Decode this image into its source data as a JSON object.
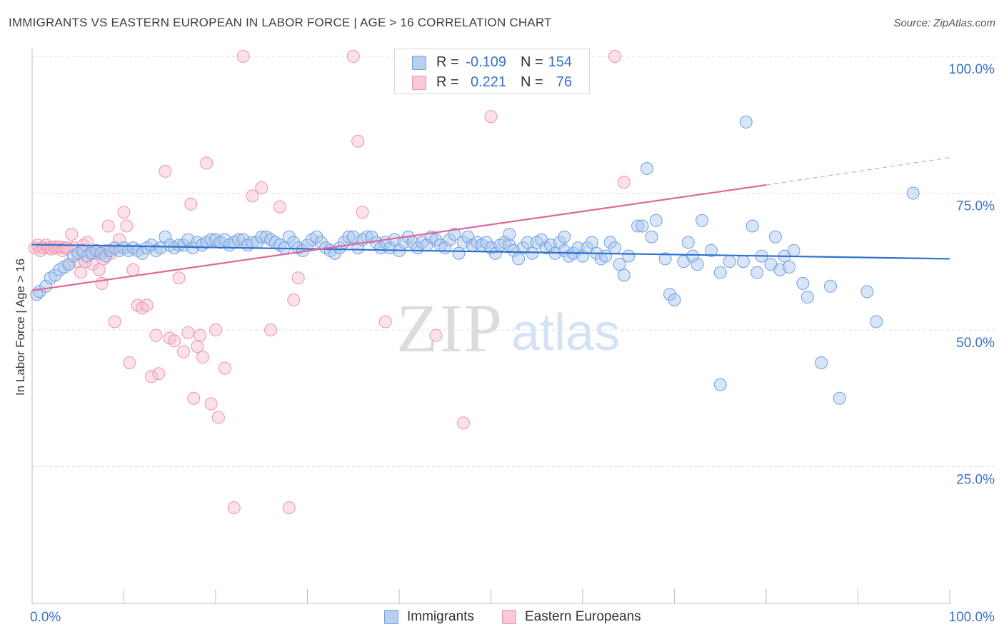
{
  "header": {
    "title": "IMMIGRANTS VS EASTERN EUROPEAN IN LABOR FORCE | AGE > 16 CORRELATION CHART",
    "source": "Source: ZipAtlas.com"
  },
  "watermark": {
    "zip": "ZIP",
    "atlas": "atlas"
  },
  "legend_top": {
    "rows": [
      {
        "r_label": "R =",
        "r_value": "-0.109",
        "n_label": "N =",
        "n_value": "154"
      },
      {
        "r_label": "R =",
        "r_value": "0.221",
        "n_label": "N =",
        "n_value": "76"
      }
    ]
  },
  "legend_bottom": {
    "items": [
      "Immigrants",
      "Eastern Europeans"
    ]
  },
  "colors": {
    "blue_fill": "#a9c6ee",
    "blue_stroke": "#6f9fdf",
    "blue_line": "#2f6fcf",
    "pink_fill": "#f6bccd",
    "pink_stroke": "#ee93ad",
    "pink_line": "#e0679a",
    "tick_label": "#3a72c8",
    "grid": "#d9d9d9"
  },
  "chart_data": {
    "type": "scatter",
    "xlabel": "",
    "ylabel": "In Labor Force | Age > 16",
    "xlim": [
      0,
      100
    ],
    "ylim": [
      0,
      100
    ],
    "x_tick_labels": [
      "0.0%",
      "100.0%"
    ],
    "y_ticks": [
      25,
      50,
      75,
      100
    ],
    "y_tick_labels": [
      "25.0%",
      "50.0%",
      "75.0%",
      "100.0%"
    ],
    "grid": "horizontal dashed",
    "series": [
      {
        "name": "Immigrants",
        "trend": {
          "x0": 0,
          "y0": 65.6,
          "x1": 100,
          "y1": 63.0
        },
        "points": [
          [
            0.5,
            56.5
          ],
          [
            0.8,
            57.0
          ],
          [
            1.5,
            58.0
          ],
          [
            2.0,
            59.5
          ],
          [
            2.5,
            60.0
          ],
          [
            3.0,
            61.0
          ],
          [
            3.5,
            61.5
          ],
          [
            4.0,
            62.0
          ],
          [
            4.5,
            63.5
          ],
          [
            5.0,
            64.0
          ],
          [
            5.5,
            64.5
          ],
          [
            6.0,
            63.5
          ],
          [
            6.5,
            64.0
          ],
          [
            7.0,
            64.5
          ],
          [
            7.5,
            64.0
          ],
          [
            8.0,
            63.5
          ],
          [
            8.5,
            64.5
          ],
          [
            9.0,
            65.0
          ],
          [
            9.5,
            64.5
          ],
          [
            10.0,
            65.0
          ],
          [
            10.5,
            64.5
          ],
          [
            11.0,
            65.0
          ],
          [
            11.5,
            64.5
          ],
          [
            12.0,
            64.0
          ],
          [
            12.5,
            65.0
          ],
          [
            13.0,
            65.5
          ],
          [
            13.5,
            64.5
          ],
          [
            14.0,
            65.0
          ],
          [
            14.5,
            67.0
          ],
          [
            15.0,
            65.5
          ],
          [
            15.5,
            65.0
          ],
          [
            16.0,
            65.5
          ],
          [
            16.5,
            65.5
          ],
          [
            17.0,
            66.5
          ],
          [
            17.5,
            65.0
          ],
          [
            18.0,
            66.0
          ],
          [
            18.5,
            65.5
          ],
          [
            19.0,
            66.0
          ],
          [
            19.5,
            66.5
          ],
          [
            20.0,
            66.5
          ],
          [
            20.5,
            66.0
          ],
          [
            21.0,
            66.5
          ],
          [
            21.5,
            65.5
          ],
          [
            22.0,
            66.0
          ],
          [
            22.5,
            66.5
          ],
          [
            23.0,
            66.5
          ],
          [
            23.5,
            65.5
          ],
          [
            24.0,
            66.0
          ],
          [
            24.5,
            66.0
          ],
          [
            25.0,
            67.0
          ],
          [
            25.5,
            67.0
          ],
          [
            26.0,
            66.5
          ],
          [
            26.5,
            66.0
          ],
          [
            27.0,
            65.5
          ],
          [
            27.5,
            65.0
          ],
          [
            28.0,
            67.0
          ],
          [
            28.5,
            66.0
          ],
          [
            29.0,
            65.0
          ],
          [
            29.5,
            64.5
          ],
          [
            30.0,
            65.5
          ],
          [
            30.5,
            66.5
          ],
          [
            31.0,
            67.0
          ],
          [
            31.5,
            66.0
          ],
          [
            32.0,
            65.0
          ],
          [
            32.5,
            64.5
          ],
          [
            33.0,
            64.0
          ],
          [
            33.5,
            65.0
          ],
          [
            34.0,
            66.0
          ],
          [
            34.5,
            67.0
          ],
          [
            35.0,
            67.0
          ],
          [
            35.5,
            65.0
          ],
          [
            36.0,
            66.5
          ],
          [
            36.5,
            67.0
          ],
          [
            37.0,
            67.0
          ],
          [
            37.5,
            66.0
          ],
          [
            38.0,
            65.0
          ],
          [
            38.5,
            66.0
          ],
          [
            39.0,
            65.0
          ],
          [
            39.5,
            66.5
          ],
          [
            40.0,
            64.5
          ],
          [
            40.5,
            66.0
          ],
          [
            41.0,
            67.0
          ],
          [
            41.5,
            66.0
          ],
          [
            42.0,
            65.0
          ],
          [
            42.5,
            66.0
          ],
          [
            43.0,
            65.5
          ],
          [
            43.5,
            67.0
          ],
          [
            44.0,
            66.5
          ],
          [
            44.5,
            65.5
          ],
          [
            45.0,
            65.0
          ],
          [
            45.5,
            66.5
          ],
          [
            46.0,
            67.5
          ],
          [
            46.5,
            64.0
          ],
          [
            47.0,
            66.0
          ],
          [
            47.5,
            67.0
          ],
          [
            48.0,
            65.5
          ],
          [
            48.5,
            66.0
          ],
          [
            49.0,
            65.5
          ],
          [
            49.5,
            66.0
          ],
          [
            50.0,
            65.0
          ],
          [
            50.5,
            64.0
          ],
          [
            51.0,
            65.5
          ],
          [
            51.5,
            66.0
          ],
          [
            52.0,
            65.5
          ],
          [
            52.5,
            64.5
          ],
          [
            53.0,
            63.0
          ],
          [
            53.5,
            65.0
          ],
          [
            54.0,
            66.0
          ],
          [
            54.5,
            64.0
          ],
          [
            55.0,
            66.0
          ],
          [
            55.5,
            66.5
          ],
          [
            56.0,
            65.0
          ],
          [
            56.5,
            65.5
          ],
          [
            57.0,
            64.0
          ],
          [
            57.5,
            66.0
          ],
          [
            58.0,
            64.5
          ],
          [
            58.5,
            63.5
          ],
          [
            59.0,
            64.0
          ],
          [
            59.5,
            65.0
          ],
          [
            60.0,
            63.5
          ],
          [
            60.5,
            65.0
          ],
          [
            61.0,
            66.0
          ],
          [
            61.5,
            64.0
          ],
          [
            62.0,
            63.0
          ],
          [
            62.5,
            63.5
          ],
          [
            63.0,
            66.0
          ],
          [
            63.5,
            65.0
          ],
          [
            64.0,
            62.0
          ],
          [
            64.5,
            60.0
          ],
          [
            65.0,
            63.5
          ],
          [
            66.0,
            69.0
          ],
          [
            66.5,
            69.0
          ],
          [
            67.0,
            79.5
          ],
          [
            67.5,
            67.0
          ],
          [
            68.0,
            70.0
          ],
          [
            69.0,
            63.0
          ],
          [
            69.5,
            56.5
          ],
          [
            70.0,
            55.5
          ],
          [
            71.0,
            62.5
          ],
          [
            71.5,
            66.0
          ],
          [
            72.0,
            63.5
          ],
          [
            72.5,
            62.0
          ],
          [
            73.0,
            70.0
          ],
          [
            74.0,
            64.5
          ],
          [
            75.0,
            60.5
          ],
          [
            76.0,
            62.5
          ],
          [
            77.5,
            62.5
          ],
          [
            77.8,
            88.0
          ],
          [
            78.5,
            69.0
          ],
          [
            79.0,
            60.5
          ],
          [
            79.5,
            63.5
          ],
          [
            80.5,
            62.0
          ],
          [
            81.0,
            67.0
          ],
          [
            81.5,
            61.0
          ],
          [
            82.0,
            63.5
          ],
          [
            82.5,
            61.5
          ],
          [
            83.0,
            64.5
          ],
          [
            84.0,
            58.5
          ],
          [
            84.5,
            56.0
          ],
          [
            86.0,
            44.0
          ],
          [
            87.0,
            58.0
          ],
          [
            88.0,
            37.5
          ],
          [
            91.0,
            57.0
          ],
          [
            92.0,
            51.5
          ],
          [
            96.0,
            75.0
          ],
          [
            75.0,
            40.0
          ],
          [
            52.0,
            67.5
          ],
          [
            58.0,
            67.0
          ]
        ]
      },
      {
        "name": "Eastern Europeans",
        "trend": {
          "x0": 0,
          "y0": 57.2,
          "x1": 80,
          "y1": 76.5,
          "dash_to_x": 100,
          "dash_to_y": 81.5
        },
        "points": [
          [
            0.3,
            65.0
          ],
          [
            0.6,
            65.5
          ],
          [
            0.9,
            64.5
          ],
          [
            1.2,
            65.0
          ],
          [
            1.5,
            65.5
          ],
          [
            1.8,
            65.0
          ],
          [
            2.1,
            64.8
          ],
          [
            2.4,
            65.2
          ],
          [
            2.7,
            65.0
          ],
          [
            3.0,
            65.2
          ],
          [
            3.3,
            64.5
          ],
          [
            3.6,
            65.0
          ],
          [
            4.0,
            62.0
          ],
          [
            4.3,
            67.5
          ],
          [
            4.6,
            65.0
          ],
          [
            5.0,
            62.5
          ],
          [
            5.3,
            60.5
          ],
          [
            5.6,
            65.5
          ],
          [
            6.0,
            66.0
          ],
          [
            6.3,
            64.0
          ],
          [
            6.6,
            62.0
          ],
          [
            7.0,
            64.5
          ],
          [
            7.3,
            61.0
          ],
          [
            7.6,
            58.5
          ],
          [
            8.0,
            64.5
          ],
          [
            8.3,
            69.0
          ],
          [
            8.6,
            64.0
          ],
          [
            9.0,
            51.5
          ],
          [
            9.5,
            66.5
          ],
          [
            10.0,
            71.5
          ],
          [
            10.3,
            69.0
          ],
          [
            10.6,
            44.0
          ],
          [
            11.0,
            61.0
          ],
          [
            11.5,
            54.5
          ],
          [
            12.0,
            54.0
          ],
          [
            12.5,
            54.5
          ],
          [
            13.0,
            41.5
          ],
          [
            13.5,
            49.0
          ],
          [
            13.8,
            42.0
          ],
          [
            14.5,
            79.0
          ],
          [
            15.0,
            48.5
          ],
          [
            15.5,
            48.0
          ],
          [
            16.0,
            59.5
          ],
          [
            16.5,
            46.0
          ],
          [
            17.0,
            49.5
          ],
          [
            17.3,
            73.0
          ],
          [
            17.6,
            37.5
          ],
          [
            18.0,
            47.0
          ],
          [
            18.3,
            49.0
          ],
          [
            18.6,
            45.0
          ],
          [
            19.0,
            80.5
          ],
          [
            19.5,
            36.5
          ],
          [
            20.0,
            50.0
          ],
          [
            20.3,
            34.0
          ],
          [
            21.0,
            43.0
          ],
          [
            22.0,
            17.5
          ],
          [
            23.0,
            100.0
          ],
          [
            24.0,
            74.5
          ],
          [
            25.0,
            76.0
          ],
          [
            26.0,
            50.0
          ],
          [
            27.0,
            72.5
          ],
          [
            28.0,
            17.5
          ],
          [
            28.5,
            55.5
          ],
          [
            29.0,
            59.5
          ],
          [
            35.0,
            100.0
          ],
          [
            35.5,
            84.5
          ],
          [
            36.0,
            71.5
          ],
          [
            38.5,
            51.5
          ],
          [
            44.0,
            49.0
          ],
          [
            47.0,
            33.0
          ],
          [
            50.0,
            89.0
          ],
          [
            63.5,
            100.0
          ],
          [
            64.5,
            77.0
          ],
          [
            5.8,
            62.5
          ],
          [
            7.8,
            63.0
          ],
          [
            3.8,
            65.0
          ]
        ]
      }
    ]
  }
}
